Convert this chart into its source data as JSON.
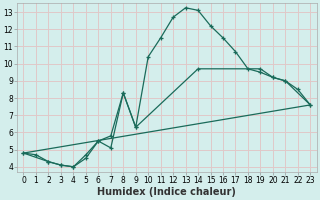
{
  "bg_color": "#d4eeec",
  "grid_color": "#e0c8c8",
  "line_color": "#1a6b5a",
  "line1_x": [
    0,
    1,
    2,
    3,
    4,
    5,
    6,
    7,
    8,
    9,
    10,
    11,
    12,
    13,
    14,
    15,
    16,
    17,
    18,
    19,
    20,
    21,
    22,
    23
  ],
  "line1_y": [
    4.8,
    4.7,
    4.3,
    4.1,
    4.0,
    4.5,
    5.5,
    5.8,
    8.3,
    6.3,
    10.4,
    11.5,
    12.7,
    13.25,
    13.1,
    12.2,
    11.5,
    10.7,
    9.7,
    9.5,
    9.2,
    9.0,
    8.5,
    7.6
  ],
  "line2_x": [
    0,
    2,
    3,
    4,
    5,
    6,
    7,
    8,
    9,
    14,
    19,
    20,
    21,
    23
  ],
  "line2_y": [
    4.8,
    4.3,
    4.1,
    4.0,
    4.7,
    5.5,
    5.1,
    8.3,
    6.3,
    9.7,
    9.7,
    9.2,
    9.0,
    7.6
  ],
  "line3_x": [
    0,
    23
  ],
  "line3_y": [
    4.8,
    7.6
  ],
  "xlabel": "Humidex (Indice chaleur)",
  "xlim_min": -0.5,
  "xlim_max": 23.5,
  "ylim_min": 3.7,
  "ylim_max": 13.5,
  "xticks": [
    0,
    1,
    2,
    3,
    4,
    5,
    6,
    7,
    8,
    9,
    10,
    11,
    12,
    13,
    14,
    15,
    16,
    17,
    18,
    19,
    20,
    21,
    22,
    23
  ],
  "yticks": [
    4,
    5,
    6,
    7,
    8,
    9,
    10,
    11,
    12,
    13
  ],
  "xlabel_fontsize": 7,
  "tick_fontsize": 5.5
}
